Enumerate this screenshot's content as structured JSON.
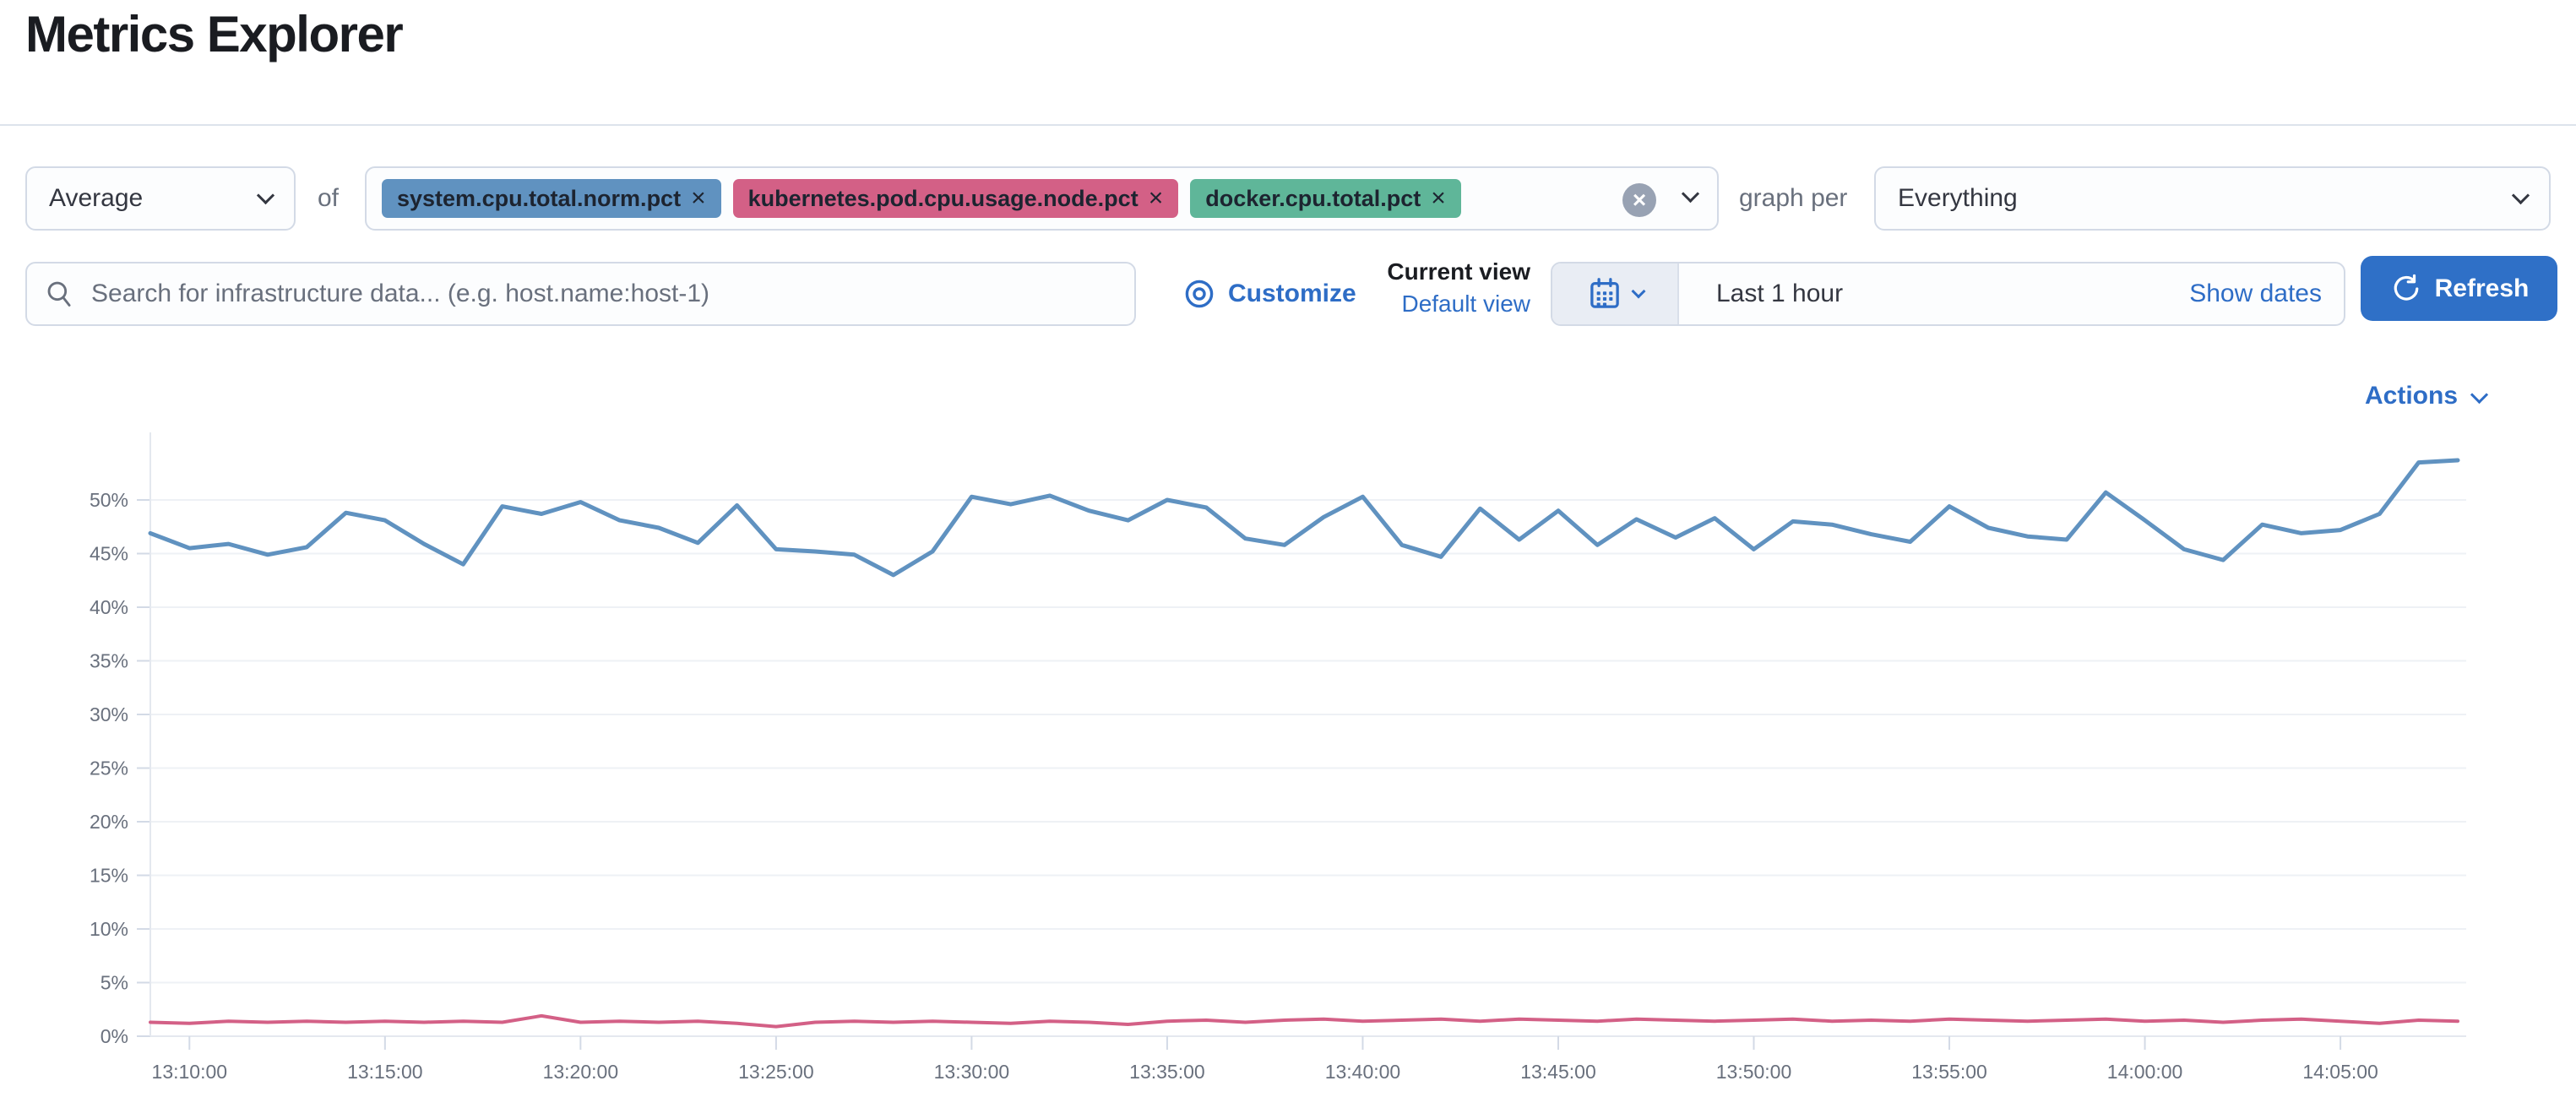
{
  "page": {
    "title": "Metrics Explorer"
  },
  "toolbar": {
    "aggregation": {
      "value": "Average"
    },
    "of_label": "of",
    "metrics": [
      {
        "label": "system.cpu.total.norm.pct",
        "color": "#6092C0"
      },
      {
        "label": "kubernetes.pod.cpu.usage.node.pct",
        "color": "#D36086"
      },
      {
        "label": "docker.cpu.total.pct",
        "color": "#5FB699"
      }
    ],
    "graph_per_label": "graph per",
    "group_by": {
      "value": "Everything"
    }
  },
  "filter_bar": {
    "search": {
      "value": "",
      "placeholder": "Search for infrastructure data... (e.g. host.name:host-1)"
    },
    "customize_label": "Customize",
    "view_picker": {
      "current_label": "Current view",
      "selected_view": "Default view"
    },
    "time_picker": {
      "value": "Last 1 hour",
      "show_dates_label": "Show dates"
    },
    "refresh_label": "Refresh"
  },
  "chart_header": {
    "actions_label": "Actions"
  },
  "icons": {
    "remove_glyph": "×",
    "clear_glyph": "×"
  },
  "colors": {
    "link_blue": "#2E6DC6",
    "primary_button_blue": "#2F70C7",
    "border_gray": "#D3DAE6",
    "text": "#343741",
    "subdued_text": "#69707D",
    "clear_button_bg": "#98A2B3",
    "series_blue": "#6092C0",
    "series_pink": "#D36086"
  },
  "chart_data": {
    "type": "line",
    "title": "",
    "xlabel": "",
    "ylabel": "",
    "unit": "%",
    "grid": true,
    "legend": "none",
    "ylim": [
      0,
      55.7
    ],
    "y_ticks": [
      0,
      5,
      10,
      15,
      20,
      25,
      30,
      35,
      40,
      45,
      50
    ],
    "x_ticks": [
      "13:10:00",
      "13:15:00",
      "13:20:00",
      "13:25:00",
      "13:30:00",
      "13:35:00",
      "13:40:00",
      "13:45:00",
      "13:50:00",
      "13:55:00",
      "14:00:00",
      "14:05:00"
    ],
    "x_tick_indices": [
      1,
      6,
      11,
      16,
      21,
      26,
      31,
      36,
      41,
      46,
      51,
      56
    ],
    "series": [
      {
        "name": "system.cpu.total.norm.pct",
        "color": "#6092C0",
        "values": [
          46.9,
          45.5,
          45.9,
          44.9,
          45.6,
          48.8,
          48.1,
          45.9,
          44.0,
          49.4,
          48.7,
          49.8,
          48.1,
          47.4,
          46.0,
          49.5,
          45.4,
          45.2,
          44.9,
          43.0,
          45.2,
          50.3,
          49.6,
          50.4,
          49.0,
          48.1,
          50.0,
          49.3,
          46.4,
          45.8,
          48.4,
          50.3,
          45.8,
          44.7,
          49.2,
          46.3,
          49.0,
          45.8,
          48.2,
          46.5,
          48.3,
          45.4,
          48.0,
          47.7,
          46.8,
          46.1,
          49.4,
          47.4,
          46.6,
          46.3,
          50.7,
          48.1,
          45.4,
          44.4,
          47.7,
          46.9,
          47.2,
          48.7,
          53.5,
          53.7
        ]
      },
      {
        "name": "kubernetes.pod.cpu.usage.node.pct",
        "color": "#D36086",
        "values": [
          1.3,
          1.2,
          1.4,
          1.3,
          1.4,
          1.3,
          1.4,
          1.3,
          1.4,
          1.3,
          1.9,
          1.3,
          1.4,
          1.3,
          1.4,
          1.2,
          0.9,
          1.3,
          1.4,
          1.3,
          1.4,
          1.3,
          1.2,
          1.4,
          1.3,
          1.1,
          1.4,
          1.5,
          1.3,
          1.5,
          1.6,
          1.4,
          1.5,
          1.6,
          1.4,
          1.6,
          1.5,
          1.4,
          1.6,
          1.5,
          1.4,
          1.5,
          1.6,
          1.4,
          1.5,
          1.4,
          1.6,
          1.5,
          1.4,
          1.5,
          1.6,
          1.4,
          1.5,
          1.3,
          1.5,
          1.6,
          1.4,
          1.2,
          1.5,
          1.4
        ]
      }
    ]
  }
}
